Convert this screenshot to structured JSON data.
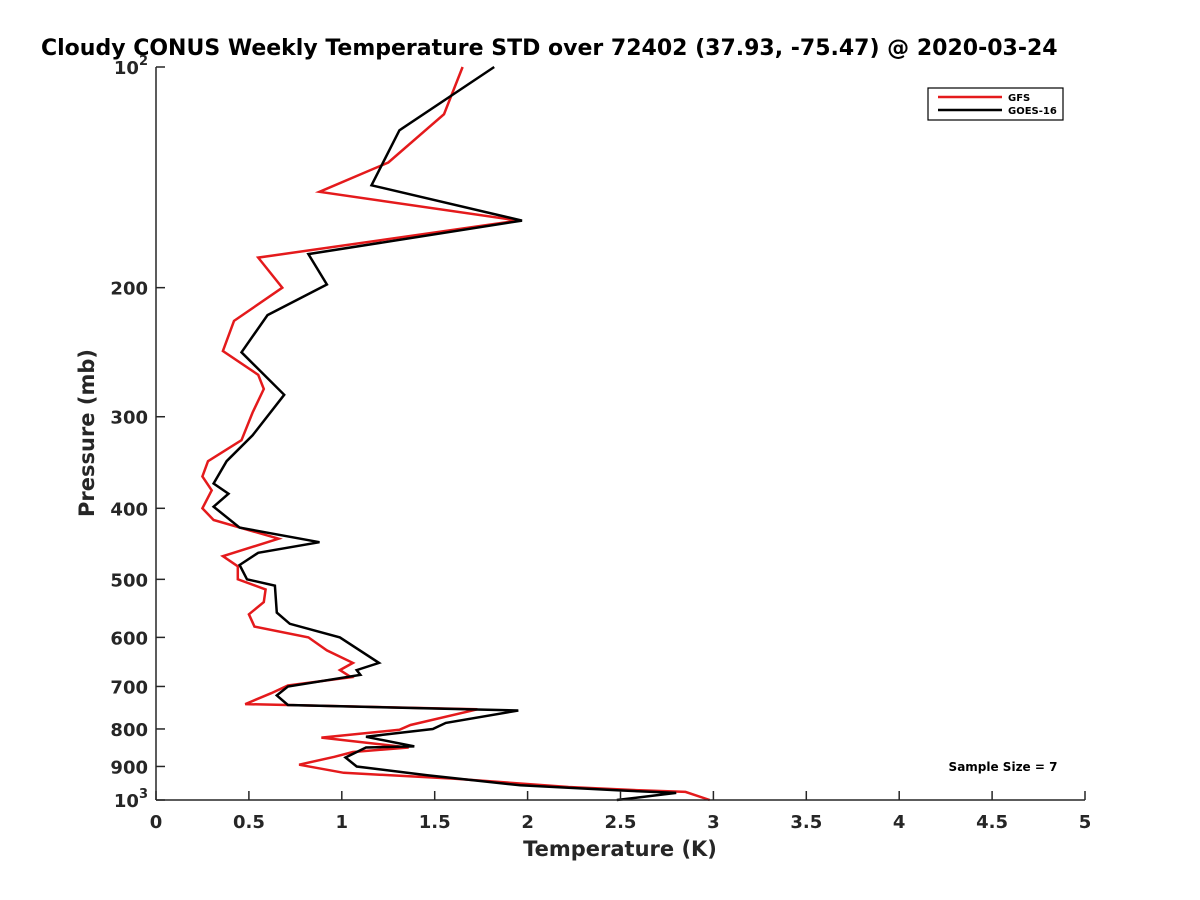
{
  "chart_data": {
    "type": "line",
    "title": "Cloudy CONUS Weekly Temperature STD over 72402 (37.93, -75.47) @ 2020-03-24",
    "xlabel": "Temperature (K)",
    "ylabel": "Pressure (mb)",
    "xlim": [
      0,
      5
    ],
    "ylim": [
      100,
      1000
    ],
    "yscale": "log",
    "y_reversed": true,
    "grid": false,
    "legend_position": "top-right",
    "x_ticks": [
      {
        "value": 0,
        "label": "0"
      },
      {
        "value": 0.5,
        "label": "0.5"
      },
      {
        "value": 1,
        "label": "1"
      },
      {
        "value": 1.5,
        "label": "1.5"
      },
      {
        "value": 2,
        "label": "2"
      },
      {
        "value": 2.5,
        "label": "2.5"
      },
      {
        "value": 3,
        "label": "3"
      },
      {
        "value": 3.5,
        "label": "3.5"
      },
      {
        "value": 4,
        "label": "4"
      },
      {
        "value": 4.5,
        "label": "4.5"
      },
      {
        "value": 5,
        "label": "5"
      }
    ],
    "y_ticks": [
      {
        "value": 100,
        "base": "10",
        "exp": "2"
      },
      {
        "value": 200,
        "label": "200"
      },
      {
        "value": 300,
        "label": "300"
      },
      {
        "value": 400,
        "label": "400"
      },
      {
        "value": 500,
        "label": "500"
      },
      {
        "value": 600,
        "label": "600"
      },
      {
        "value": 700,
        "label": "700"
      },
      {
        "value": 800,
        "label": "800"
      },
      {
        "value": 900,
        "label": "900"
      },
      {
        "value": 1000,
        "base": "10",
        "exp": "3"
      }
    ],
    "annotation": "Sample Size = 7",
    "series": [
      {
        "name": "GFS",
        "color": "#e41a1c",
        "points": [
          [
            1.65,
            100
          ],
          [
            1.55,
            116
          ],
          [
            1.25,
            135
          ],
          [
            0.88,
            148
          ],
          [
            1.95,
            162
          ],
          [
            0.55,
            182
          ],
          [
            0.68,
            200
          ],
          [
            0.42,
            222
          ],
          [
            0.36,
            244
          ],
          [
            0.55,
            263
          ],
          [
            0.58,
            275
          ],
          [
            0.52,
            296
          ],
          [
            0.46,
            323
          ],
          [
            0.28,
            345
          ],
          [
            0.25,
            362
          ],
          [
            0.3,
            378
          ],
          [
            0.25,
            400
          ],
          [
            0.31,
            415
          ],
          [
            0.66,
            440
          ],
          [
            0.36,
            465
          ],
          [
            0.44,
            480
          ],
          [
            0.44,
            500
          ],
          [
            0.59,
            516
          ],
          [
            0.58,
            537
          ],
          [
            0.5,
            558
          ],
          [
            0.53,
            580
          ],
          [
            0.82,
            600
          ],
          [
            0.92,
            625
          ],
          [
            1.06,
            650
          ],
          [
            0.99,
            665
          ],
          [
            1.05,
            680
          ],
          [
            0.71,
            698
          ],
          [
            0.62,
            715
          ],
          [
            0.48,
            740
          ],
          [
            1.73,
            752
          ],
          [
            1.37,
            790
          ],
          [
            1.31,
            802
          ],
          [
            0.89,
            822
          ],
          [
            1.36,
            848
          ],
          [
            1.06,
            860
          ],
          [
            0.96,
            873
          ],
          [
            0.77,
            895
          ],
          [
            1.01,
            918
          ],
          [
            1.6,
            935
          ],
          [
            2.22,
            960
          ],
          [
            2.6,
            970
          ],
          [
            2.85,
            975
          ],
          [
            2.98,
            1000
          ]
        ]
      },
      {
        "name": "GOES-16",
        "color": "#000000",
        "points": [
          [
            1.82,
            100
          ],
          [
            1.31,
            122
          ],
          [
            1.16,
            145
          ],
          [
            1.97,
            162
          ],
          [
            0.82,
            180
          ],
          [
            0.92,
            198
          ],
          [
            0.6,
            218
          ],
          [
            0.46,
            245
          ],
          [
            0.69,
            280
          ],
          [
            0.52,
            318
          ],
          [
            0.38,
            345
          ],
          [
            0.31,
            370
          ],
          [
            0.39,
            382
          ],
          [
            0.31,
            398
          ],
          [
            0.45,
            425
          ],
          [
            0.88,
            445
          ],
          [
            0.55,
            460
          ],
          [
            0.45,
            478
          ],
          [
            0.49,
            500
          ],
          [
            0.64,
            510
          ],
          [
            0.65,
            555
          ],
          [
            0.72,
            575
          ],
          [
            0.99,
            600
          ],
          [
            1.2,
            650
          ],
          [
            1.08,
            665
          ],
          [
            1.1,
            675
          ],
          [
            0.71,
            700
          ],
          [
            0.65,
            720
          ],
          [
            0.71,
            742
          ],
          [
            1.95,
            755
          ],
          [
            1.56,
            785
          ],
          [
            1.49,
            800
          ],
          [
            1.13,
            820
          ],
          [
            1.39,
            845
          ],
          [
            1.13,
            848
          ],
          [
            1.02,
            875
          ],
          [
            1.08,
            900
          ],
          [
            1.46,
            925
          ],
          [
            1.96,
            955
          ],
          [
            2.48,
            970
          ],
          [
            2.8,
            978
          ],
          [
            2.48,
            1000
          ]
        ]
      }
    ]
  }
}
